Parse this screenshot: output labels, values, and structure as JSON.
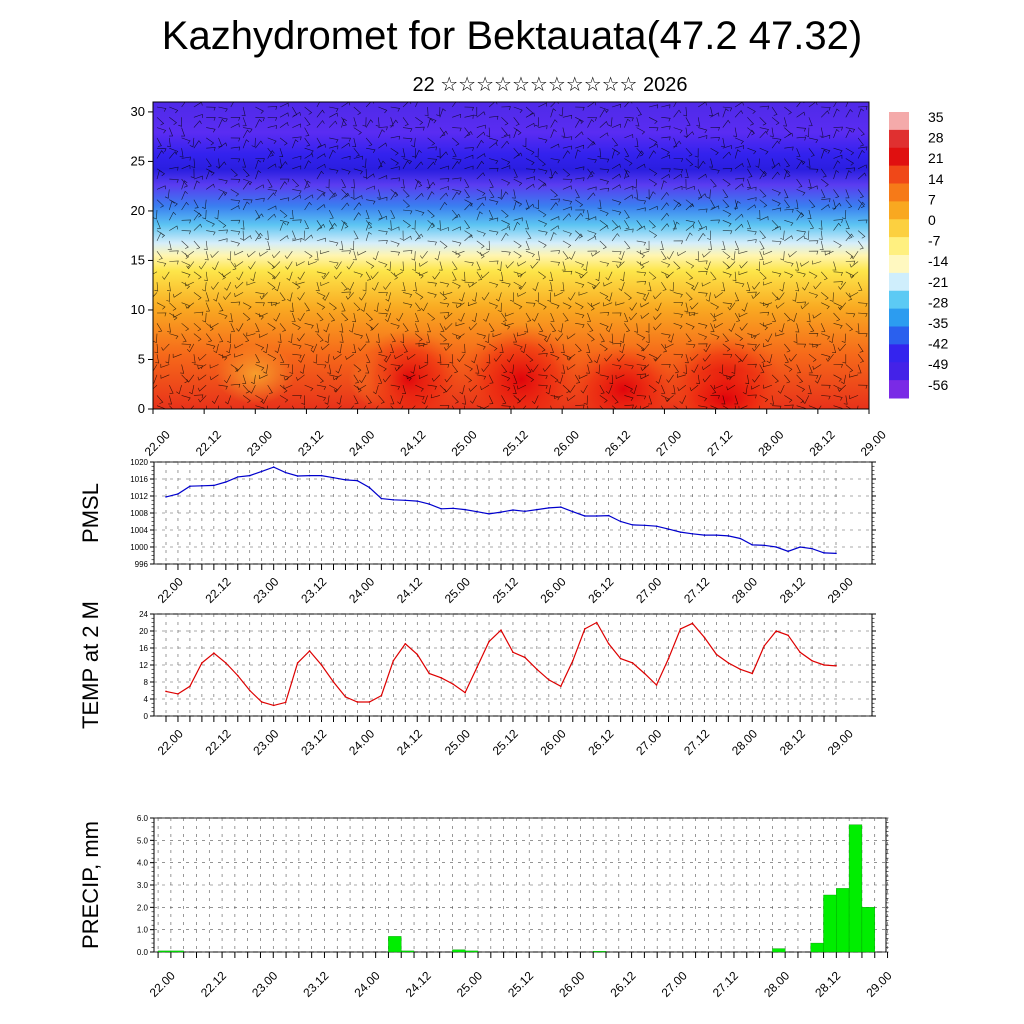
{
  "header": {
    "title": "Kazhydromet for Bektauata(47.2 47.32)",
    "subtitle": "22 ☆☆☆☆☆☆☆☆☆☆☆ 2026"
  },
  "time_labels": [
    "22.00",
    "22.12",
    "23.00",
    "23.12",
    "24.00",
    "24.12",
    "25.00",
    "25.12",
    "26.00",
    "26.12",
    "27.00",
    "27.12",
    "28.00",
    "28.12",
    "29.00"
  ],
  "chart_data": [
    {
      "type": "heatmap",
      "name": "cross-section",
      "x": [
        "22.00",
        "22.12",
        "23.00",
        "23.12",
        "24.00",
        "24.12",
        "25.00",
        "25.12",
        "26.00",
        "26.12",
        "27.00",
        "27.12",
        "28.00",
        "28.12",
        "29.00"
      ],
      "ylim": [
        0,
        31
      ],
      "yticks": [
        0,
        5,
        10,
        15,
        20,
        25,
        30
      ],
      "colorbar": {
        "labels": [
          "35",
          "28",
          "21",
          "14",
          "7",
          "0",
          "-7",
          "-14",
          "-21",
          "-28",
          "-35",
          "-42",
          "-49",
          "-56"
        ]
      },
      "wind_barbs": true
    },
    {
      "type": "line",
      "ylabel": "PMSL",
      "color": "#0000cc",
      "ylim": [
        996,
        1020
      ],
      "yticks": [
        "996",
        "1000",
        "1004",
        "1008",
        "1012",
        "1016",
        "1020"
      ],
      "x": [
        "22.00",
        "22.03",
        "22.06",
        "22.09",
        "22.12",
        "22.15",
        "22.18",
        "22.21",
        "23.00",
        "23.03",
        "23.06",
        "23.09",
        "23.12",
        "23.15",
        "23.18",
        "23.21",
        "24.00",
        "24.03",
        "24.06",
        "24.09",
        "24.12",
        "24.15",
        "24.18",
        "24.21",
        "25.00",
        "25.03",
        "25.06",
        "25.09",
        "25.12",
        "25.15",
        "25.18",
        "25.21",
        "26.00",
        "26.03",
        "26.06",
        "26.09",
        "26.12",
        "26.15",
        "26.18",
        "26.21",
        "27.00",
        "27.03",
        "27.06",
        "27.09",
        "27.12",
        "27.15",
        "27.18",
        "27.21",
        "28.00",
        "28.03",
        "28.06",
        "28.09",
        "28.12",
        "28.15",
        "28.18",
        "28.21",
        "29.00"
      ],
      "values": [
        1011.8,
        1012.5,
        1014.3,
        1014.4,
        1014.5,
        1015.3,
        1016.5,
        1016.8,
        1017.8,
        1018.8,
        1017.5,
        1016.7,
        1016.8,
        1016.8,
        1016.3,
        1015.8,
        1015.6,
        1014.0,
        1011.4,
        1011.1,
        1011.0,
        1010.8,
        1010.1,
        1009.0,
        1009.1,
        1008.8,
        1008.3,
        1007.8,
        1008.2,
        1008.7,
        1008.4,
        1008.8,
        1009.2,
        1009.4,
        1008.3,
        1007.3,
        1007.3,
        1007.4,
        1006.0,
        1005.2,
        1005.1,
        1004.9,
        1004.2,
        1003.5,
        1003.1,
        1002.8,
        1002.8,
        1002.6,
        1002.0,
        1000.5,
        1000.4,
        1000.0,
        999.0,
        1000.0,
        999.6,
        998.6,
        998.5
      ]
    },
    {
      "type": "line",
      "ylabel": "TEMP at 2 M",
      "color": "#dd0000",
      "ylim": [
        0,
        24
      ],
      "yticks": [
        "0",
        "4",
        "8",
        "12",
        "16",
        "20",
        "24"
      ],
      "x": [
        "22.00",
        "22.03",
        "22.06",
        "22.09",
        "22.12",
        "22.15",
        "22.18",
        "22.21",
        "23.00",
        "23.03",
        "23.06",
        "23.09",
        "23.12",
        "23.15",
        "23.18",
        "23.21",
        "24.00",
        "24.03",
        "24.06",
        "24.09",
        "24.12",
        "24.15",
        "24.18",
        "24.21",
        "25.00",
        "25.03",
        "25.06",
        "25.09",
        "25.12",
        "25.15",
        "25.18",
        "25.21",
        "26.00",
        "26.03",
        "26.06",
        "26.09",
        "26.12",
        "26.15",
        "26.18",
        "26.21",
        "27.00",
        "27.03",
        "27.06",
        "27.09",
        "27.12",
        "27.15",
        "27.18",
        "27.21",
        "28.00",
        "28.03",
        "28.06",
        "28.09",
        "28.12",
        "28.15",
        "28.18",
        "28.21",
        "29.00"
      ],
      "values": [
        5.8,
        5.2,
        7.0,
        12.5,
        14.8,
        12.5,
        9.5,
        6.0,
        3.3,
        2.5,
        3.2,
        12.5,
        15.3,
        12.0,
        8.0,
        4.5,
        3.3,
        3.3,
        4.8,
        13.0,
        17.0,
        14.5,
        10.0,
        9.0,
        7.5,
        5.5,
        11.5,
        17.5,
        20.2,
        15.0,
        13.8,
        11.0,
        8.5,
        7.0,
        13.0,
        20.5,
        22.0,
        17.0,
        13.5,
        12.5,
        10.0,
        7.3,
        13.5,
        20.5,
        21.8,
        18.5,
        14.5,
        12.5,
        11.0,
        10.0,
        16.5,
        20.0,
        19.0,
        15.0,
        13.0,
        12.0,
        11.8
      ]
    },
    {
      "type": "bar",
      "ylabel": "PRECIP, mm",
      "color": "#00ee00",
      "ylim": [
        0,
        6
      ],
      "yticks": [
        "0.0",
        "1.0",
        "2.0",
        "3.0",
        "4.0",
        "5.0",
        "6.0"
      ],
      "x": [
        "22.03",
        "22.06",
        "24.09",
        "24.12",
        "25.00",
        "25.03",
        "26.09",
        "28.03",
        "28.12",
        "28.15",
        "28.18",
        "28.21",
        "29.00"
      ],
      "values": [
        0.05,
        0.05,
        0.7,
        0.05,
        0.1,
        0.05,
        0.03,
        0.15,
        0.4,
        2.55,
        2.85,
        5.7,
        2.0
      ]
    }
  ],
  "colors": {
    "pmsl_line": "#0000cc",
    "temp_line": "#dd0000",
    "precip_bar": "#00ee00"
  }
}
